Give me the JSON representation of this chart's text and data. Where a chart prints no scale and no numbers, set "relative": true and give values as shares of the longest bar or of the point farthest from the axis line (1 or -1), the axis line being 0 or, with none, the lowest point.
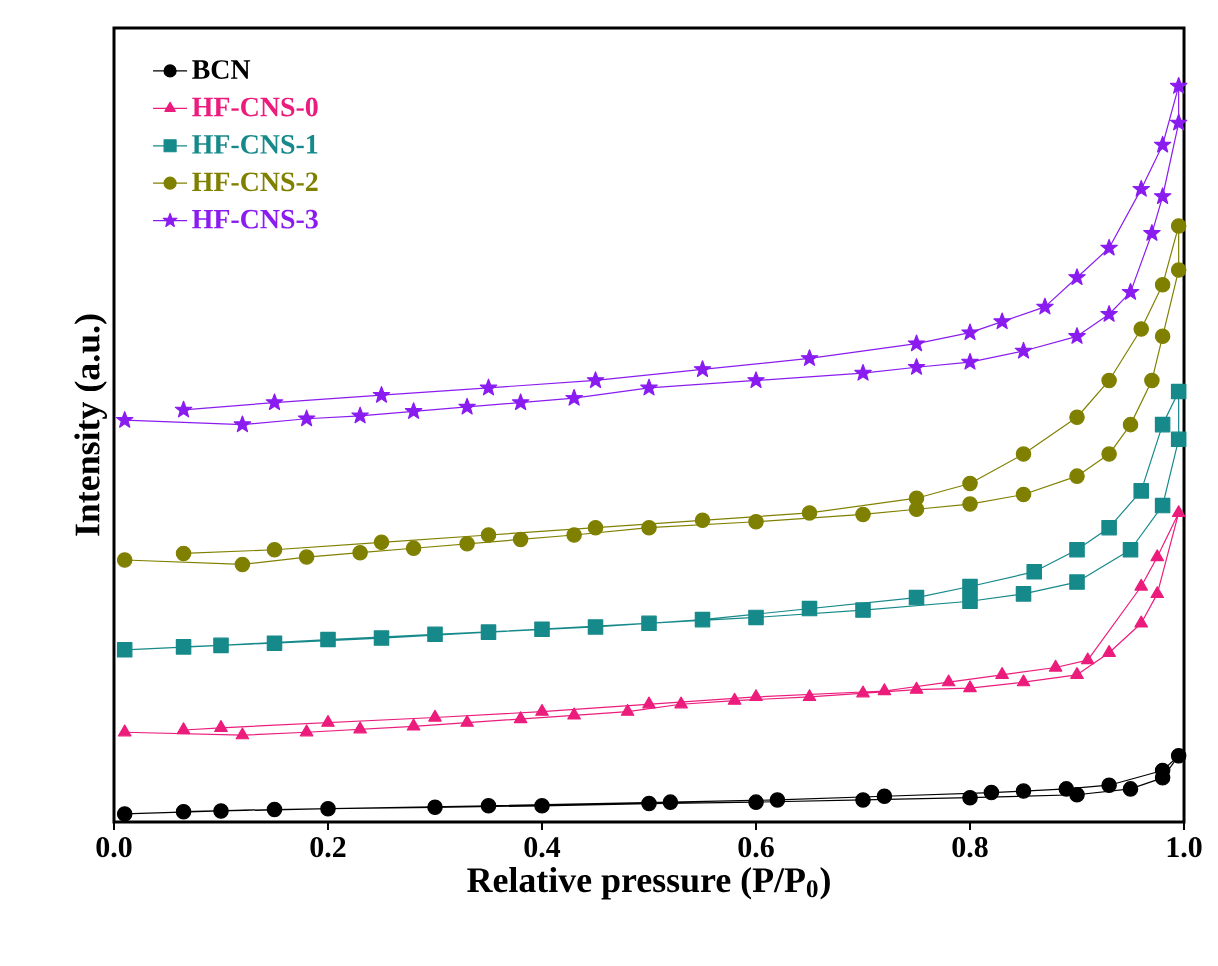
{
  "chart_data": {
    "type": "line",
    "relative": true,
    "xlabel": "Relative pressure (P/P$_{0}$)",
    "ylabel": "Intensity (a.u.)",
    "xlim": [
      0,
      1
    ],
    "xticks": [
      {
        "value": 0,
        "label": "0.0"
      },
      {
        "value": 0.2,
        "label": "0.2"
      },
      {
        "value": 0.4,
        "label": "0.4"
      },
      {
        "value": 0.6,
        "label": "0.6"
      },
      {
        "value": 0.8,
        "label": "0.8"
      },
      {
        "value": 1,
        "label": "1.0"
      }
    ],
    "tick_labels": "x",
    "legend": "top left",
    "grid": false,
    "line_style": "solid",
    "series": [
      {
        "name": "BCN",
        "color": "#000000",
        "marker": "circle",
        "x": [
          0.01,
          0.1,
          0.2,
          0.3,
          0.4,
          0.5,
          0.6,
          0.7,
          0.8,
          0.9,
          0.95,
          0.98,
          0.995,
          0.98,
          0.93,
          0.89,
          0.85,
          0.82,
          0.72,
          0.62,
          0.52,
          0.35,
          0.15,
          0.065
        ],
        "values": [
          0.011,
          0.015,
          0.018,
          0.02,
          0.022,
          0.025,
          0.027,
          0.03,
          0.033,
          0.037,
          0.045,
          0.06,
          0.09,
          0.07,
          0.05,
          0.045,
          0.042,
          0.04,
          0.035,
          0.03,
          0.027,
          0.022,
          0.017,
          0.014
        ]
      },
      {
        "name": "HF-CNS-0",
        "color": "#ec1c7c",
        "marker": "triangle",
        "x": [
          0.01,
          0.12,
          0.18,
          0.23,
          0.28,
          0.33,
          0.38,
          0.43,
          0.48,
          0.53,
          0.58,
          0.65,
          0.7,
          0.75,
          0.8,
          0.85,
          0.9,
          0.93,
          0.96,
          0.975,
          0.995,
          0.975,
          0.96,
          0.91,
          0.88,
          0.83,
          0.78,
          0.72,
          0.6,
          0.5,
          0.4,
          0.3,
          0.2,
          0.1,
          0.065
        ],
        "values": [
          0.122,
          0.118,
          0.122,
          0.126,
          0.13,
          0.135,
          0.14,
          0.145,
          0.15,
          0.16,
          0.165,
          0.17,
          0.175,
          0.18,
          0.182,
          0.19,
          0.2,
          0.23,
          0.27,
          0.31,
          0.42,
          0.36,
          0.32,
          0.22,
          0.21,
          0.2,
          0.19,
          0.178,
          0.17,
          0.16,
          0.15,
          0.142,
          0.135,
          0.128,
          0.125
        ]
      },
      {
        "name": "HF-CNS-1",
        "color": "#16898a",
        "marker": "square",
        "x": [
          0.01,
          0.1,
          0.2,
          0.3,
          0.4,
          0.5,
          0.6,
          0.7,
          0.8,
          0.85,
          0.9,
          0.95,
          0.98,
          0.995,
          0.995,
          0.98,
          0.96,
          0.93,
          0.9,
          0.86,
          0.8,
          0.75,
          0.65,
          0.55,
          0.45,
          0.35,
          0.25,
          0.15,
          0.065
        ],
        "values": [
          0.234,
          0.24,
          0.248,
          0.255,
          0.262,
          0.27,
          0.278,
          0.288,
          0.3,
          0.31,
          0.326,
          0.37,
          0.43,
          0.52,
          0.585,
          0.54,
          0.45,
          0.4,
          0.37,
          0.34,
          0.32,
          0.305,
          0.29,
          0.275,
          0.265,
          0.258,
          0.25,
          0.243,
          0.238
        ]
      },
      {
        "name": "HF-CNS-2",
        "color": "#808000",
        "marker": "circle",
        "x": [
          0.01,
          0.12,
          0.18,
          0.23,
          0.28,
          0.33,
          0.38,
          0.43,
          0.5,
          0.6,
          0.7,
          0.75,
          0.8,
          0.85,
          0.9,
          0.93,
          0.95,
          0.97,
          0.98,
          0.995,
          0.995,
          0.98,
          0.96,
          0.93,
          0.9,
          0.85,
          0.8,
          0.75,
          0.65,
          0.55,
          0.45,
          0.35,
          0.25,
          0.15,
          0.065
        ],
        "values": [
          0.356,
          0.35,
          0.36,
          0.366,
          0.372,
          0.378,
          0.384,
          0.39,
          0.4,
          0.408,
          0.418,
          0.425,
          0.432,
          0.445,
          0.47,
          0.5,
          0.54,
          0.6,
          0.66,
          0.75,
          0.81,
          0.73,
          0.67,
          0.6,
          0.55,
          0.5,
          0.46,
          0.44,
          0.42,
          0.41,
          0.4,
          0.39,
          0.38,
          0.37,
          0.365
        ]
      },
      {
        "name": "HF-CNS-3",
        "color": "#8a1cf0",
        "marker": "star",
        "x": [
          0.01,
          0.12,
          0.18,
          0.23,
          0.28,
          0.33,
          0.38,
          0.43,
          0.5,
          0.6,
          0.7,
          0.75,
          0.8,
          0.85,
          0.9,
          0.93,
          0.95,
          0.97,
          0.98,
          0.995,
          0.995,
          0.98,
          0.96,
          0.93,
          0.9,
          0.87,
          0.83,
          0.8,
          0.75,
          0.65,
          0.55,
          0.45,
          0.35,
          0.25,
          0.15,
          0.065
        ],
        "values": [
          0.546,
          0.54,
          0.548,
          0.552,
          0.558,
          0.564,
          0.57,
          0.576,
          0.59,
          0.6,
          0.61,
          0.618,
          0.625,
          0.64,
          0.66,
          0.69,
          0.72,
          0.8,
          0.85,
          0.95,
          1,
          0.92,
          0.86,
          0.78,
          0.74,
          0.7,
          0.68,
          0.665,
          0.65,
          0.63,
          0.615,
          0.6,
          0.59,
          0.58,
          0.57,
          0.56
        ]
      }
    ]
  }
}
